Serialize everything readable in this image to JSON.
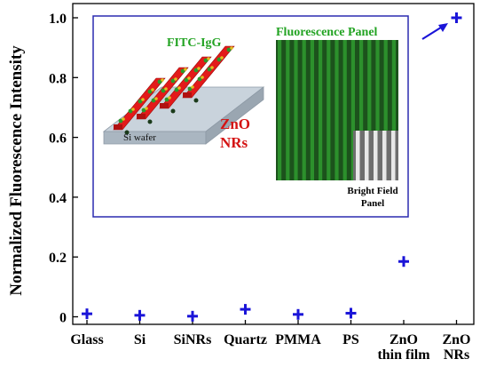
{
  "chart_data": {
    "type": "scatter",
    "ylabel": "Normalized Fluorescence Intensity",
    "categories": [
      "Glass",
      "Si",
      "SiNRs",
      "Quartz",
      "PMMA",
      "PS",
      "ZnO thin film",
      "ZnO NRs"
    ],
    "category_lines": [
      [
        "Glass"
      ],
      [
        "Si"
      ],
      [
        "SiNRs"
      ],
      [
        "Quartz"
      ],
      [
        "PMMA"
      ],
      [
        "PS"
      ],
      [
        "ZnO",
        "thin film"
      ],
      [
        "ZnO",
        "NRs"
      ]
    ],
    "values": [
      0.01,
      0.005,
      0.002,
      0.025,
      0.008,
      0.012,
      0.185,
      1.0
    ],
    "ylim": [
      0,
      1.05
    ],
    "yticks": [
      0,
      0.2,
      0.4,
      0.6,
      0.8,
      1.0
    ],
    "ytick_labels": [
      "0",
      "0.2",
      "0.4",
      "0.6",
      "0.8",
      "1.0"
    ],
    "marker": "+",
    "marker_color": "#1a14d8",
    "grid": false
  },
  "inset": {
    "fitc_label": "FITC-IgG",
    "fluorescence_label": "Fluorescence Panel",
    "bright_field_label": [
      "Bright Field",
      "Panel"
    ],
    "zno_label": [
      "ZnO",
      "NRs"
    ],
    "wafer_label": "Si wafer",
    "border_color": "#2b2bb0",
    "fitc_color": "#22a322",
    "zno_color": "#d41414"
  }
}
